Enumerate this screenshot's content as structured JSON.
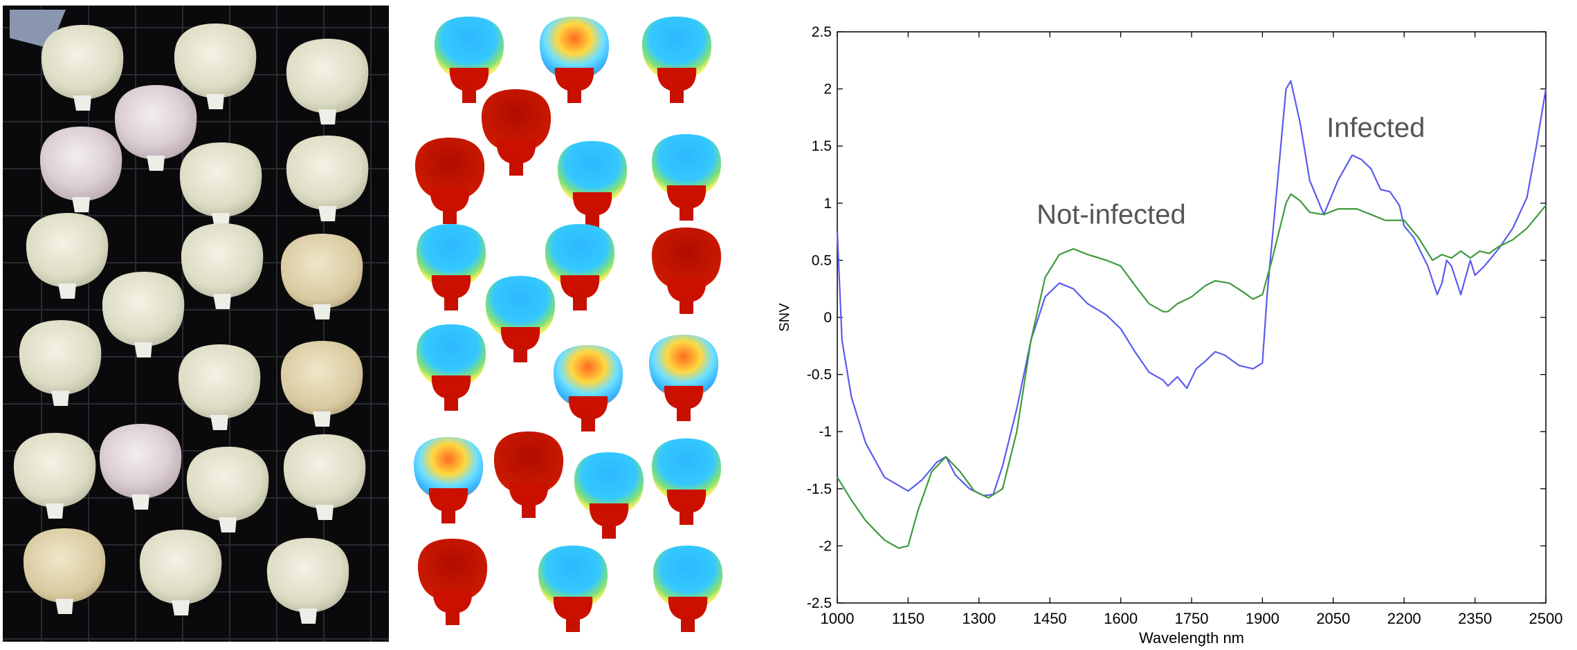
{
  "colors": {
    "infected": "#5a5af0",
    "not_infected": "#3c9a3c",
    "heat_low": "#2aa6ff",
    "heat_high": "#c01000"
  },
  "photo_panel": {
    "kernel_count": 21
  },
  "heatmap_panel": {
    "kernel_count": 21
  },
  "chart_data": {
    "type": "line",
    "xlabel": "Wavelength nm",
    "ylabel": "SNV",
    "xlim": [
      1000,
      2500
    ],
    "ylim": [
      -2.5,
      2.5
    ],
    "x_ticks": [
      "1000",
      "1150",
      "1300",
      "1450",
      "1600",
      "1750",
      "1900",
      "2050",
      "2200",
      "2350",
      "2500"
    ],
    "y_ticks": [
      "2.5",
      "2",
      "1.5",
      "1",
      "0.5",
      "0",
      "-0.5",
      "-1",
      "-1.5",
      "-2",
      "-2.5"
    ],
    "grid": false,
    "annotations": [
      {
        "text": "Infected",
        "x": 2140,
        "y": 1.58
      },
      {
        "text": "Not-infected",
        "x": 1580,
        "y": 0.82
      }
    ],
    "series": [
      {
        "name": "Infected",
        "color": "#5a5af0",
        "x": [
          1000,
          1010,
          1030,
          1060,
          1100,
          1150,
          1180,
          1210,
          1230,
          1250,
          1280,
          1310,
          1330,
          1350,
          1380,
          1410,
          1440,
          1470,
          1500,
          1530,
          1570,
          1600,
          1630,
          1660,
          1690,
          1700,
          1720,
          1740,
          1760,
          1780,
          1800,
          1820,
          1850,
          1880,
          1900,
          1910,
          1930,
          1950,
          1960,
          1980,
          2000,
          2030,
          2060,
          2090,
          2110,
          2130,
          2150,
          2170,
          2190,
          2200,
          2220,
          2250,
          2270,
          2280,
          2290,
          2300,
          2320,
          2330,
          2340,
          2350,
          2370,
          2400,
          2430,
          2460,
          2480,
          2500
        ],
        "y": [
          0.75,
          -0.2,
          -0.7,
          -1.1,
          -1.4,
          -1.52,
          -1.42,
          -1.27,
          -1.22,
          -1.38,
          -1.5,
          -1.56,
          -1.55,
          -1.3,
          -0.8,
          -0.2,
          0.18,
          0.3,
          0.25,
          0.12,
          0.02,
          -0.1,
          -0.3,
          -0.48,
          -0.55,
          -0.6,
          -0.52,
          -0.62,
          -0.45,
          -0.38,
          -0.3,
          -0.33,
          -0.42,
          -0.45,
          -0.4,
          0.2,
          1.1,
          2.0,
          2.07,
          1.7,
          1.2,
          0.9,
          1.2,
          1.42,
          1.38,
          1.3,
          1.12,
          1.1,
          0.98,
          0.8,
          0.7,
          0.45,
          0.2,
          0.3,
          0.5,
          0.45,
          0.2,
          0.35,
          0.5,
          0.37,
          0.45,
          0.6,
          0.78,
          1.05,
          1.5,
          2.0
        ]
      },
      {
        "name": "Not-infected",
        "color": "#3c9a3c",
        "x": [
          1000,
          1030,
          1060,
          1100,
          1130,
          1150,
          1170,
          1200,
          1230,
          1260,
          1290,
          1320,
          1350,
          1380,
          1410,
          1440,
          1470,
          1500,
          1530,
          1570,
          1600,
          1630,
          1660,
          1690,
          1700,
          1720,
          1750,
          1780,
          1800,
          1830,
          1860,
          1880,
          1900,
          1920,
          1950,
          1960,
          1980,
          2000,
          2030,
          2060,
          2100,
          2130,
          2160,
          2200,
          2230,
          2260,
          2280,
          2300,
          2320,
          2340,
          2360,
          2380,
          2400,
          2430,
          2460,
          2480,
          2500
        ],
        "y": [
          -1.4,
          -1.6,
          -1.78,
          -1.95,
          -2.02,
          -2.0,
          -1.7,
          -1.35,
          -1.22,
          -1.35,
          -1.52,
          -1.58,
          -1.5,
          -1.0,
          -0.2,
          0.35,
          0.55,
          0.6,
          0.55,
          0.5,
          0.45,
          0.28,
          0.12,
          0.05,
          0.05,
          0.12,
          0.18,
          0.28,
          0.32,
          0.3,
          0.22,
          0.16,
          0.2,
          0.5,
          1.0,
          1.08,
          1.02,
          0.92,
          0.9,
          0.95,
          0.95,
          0.9,
          0.85,
          0.85,
          0.7,
          0.5,
          0.55,
          0.52,
          0.58,
          0.52,
          0.58,
          0.56,
          0.62,
          0.68,
          0.78,
          0.88,
          0.98
        ]
      }
    ]
  }
}
